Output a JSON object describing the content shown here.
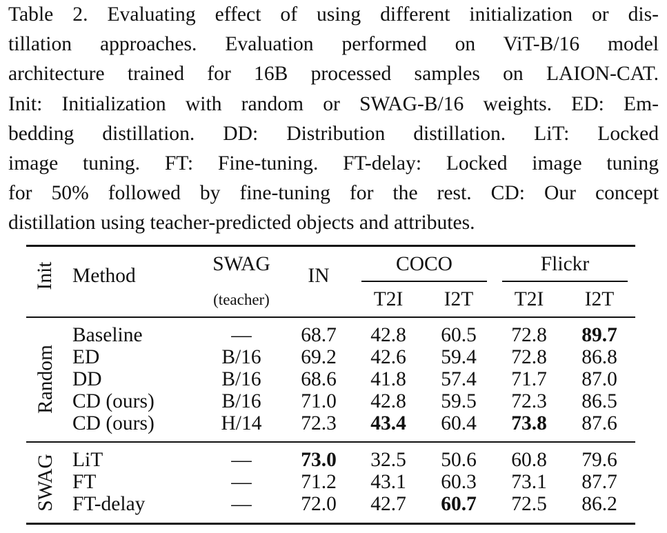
{
  "caption": {
    "lines": [
      "Table 2.  Evaluating effect of using different initialization or dis-",
      "tillation approaches.  Evaluation performed on ViT-B/16 model",
      "architecture trained for 16B processed samples on LAION-CAT.",
      "Init: Initialization with random or SWAG-B/16 weights. ED: Em-",
      "bedding distillation.  DD: Distribution distillation.  LiT: Locked",
      "image tuning.  FT: Fine-tuning.  FT-delay: Locked image tuning",
      "for 50% followed by fine-tuning for the rest.  CD: Our concept",
      "distillation using teacher-predicted objects and attributes."
    ]
  },
  "table": {
    "headers": {
      "init": "Init",
      "method": "Method",
      "swag": "SWAG",
      "swag_sub": "(teacher)",
      "in": "IN",
      "coco": "COCO",
      "flickr": "Flickr",
      "coco_t2i": "T2I",
      "coco_i2t": "I2T",
      "flickr_t2i": "T2I",
      "flickr_i2t": "I2T"
    },
    "groups": [
      {
        "label": "Random",
        "rows": [
          {
            "method": "Baseline",
            "swag": "—",
            "in": "68.7",
            "coco_t2i": "42.8",
            "coco_i2t": "60.5",
            "flickr_t2i": "72.8",
            "flickr_i2t": "89.7"
          },
          {
            "method": "ED",
            "swag": "B/16",
            "in": "69.2",
            "coco_t2i": "42.6",
            "coco_i2t": "59.4",
            "flickr_t2i": "72.8",
            "flickr_i2t": "86.8"
          },
          {
            "method": "DD",
            "swag": "B/16",
            "in": "68.6",
            "coco_t2i": "41.8",
            "coco_i2t": "57.4",
            "flickr_t2i": "71.7",
            "flickr_i2t": "87.0"
          },
          {
            "method": "CD (ours)",
            "swag": "B/16",
            "in": "71.0",
            "coco_t2i": "42.8",
            "coco_i2t": "59.5",
            "flickr_t2i": "72.3",
            "flickr_i2t": "86.5"
          },
          {
            "method": "CD (ours)",
            "swag": "H/14",
            "in": "72.3",
            "coco_t2i": "43.4",
            "coco_i2t": "60.4",
            "flickr_t2i": "73.8",
            "flickr_i2t": "87.6"
          }
        ]
      },
      {
        "label": "SWAG",
        "rows": [
          {
            "method": "LiT",
            "swag": "—",
            "in": "73.0",
            "coco_t2i": "32.5",
            "coco_i2t": "50.6",
            "flickr_t2i": "60.8",
            "flickr_i2t": "79.6"
          },
          {
            "method": "FT",
            "swag": "—",
            "in": "71.2",
            "coco_t2i": "43.1",
            "coco_i2t": "60.3",
            "flickr_t2i": "73.1",
            "flickr_i2t": "87.7"
          },
          {
            "method": "FT-delay",
            "swag": "—",
            "in": "72.0",
            "coco_t2i": "42.7",
            "coco_i2t": "60.7",
            "flickr_t2i": "72.5",
            "flickr_i2t": "86.2"
          }
        ]
      }
    ]
  }
}
